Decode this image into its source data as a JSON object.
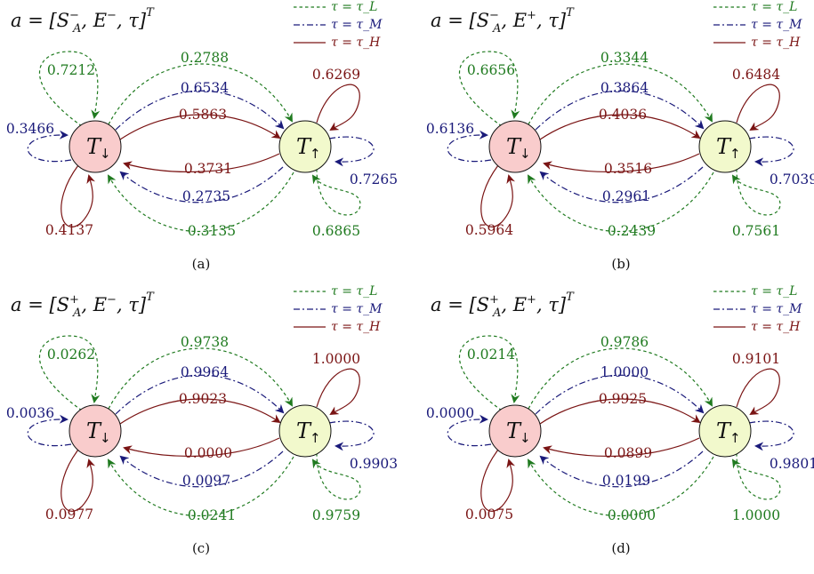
{
  "legend": {
    "low": "τ = τ_L",
    "medium": "τ = τ_M",
    "high": "τ = τ_H"
  },
  "colors": {
    "low": "#1f7a1f",
    "medium": "#1a1a7a",
    "high": "#7a1414",
    "node_down_fill": "#f9cccc",
    "node_up_fill": "#f2f9cc"
  },
  "nodes": {
    "down": {
      "symbol": "T",
      "subscript": "↓"
    },
    "up": {
      "symbol": "T",
      "subscript": "↑"
    }
  },
  "panels": [
    {
      "caption": "(a)",
      "title": {
        "s_sign": "−",
        "e_sign": "−"
      },
      "probabilities": {
        "low": {
          "down_self": "0.7212",
          "down_to_up": "0.2788",
          "up_to_down": "0.3135",
          "up_self": "0.6865"
        },
        "medium": {
          "down_self": "0.3466",
          "down_to_up": "0.6534",
          "up_to_down": "0.2735",
          "up_self": "0.7265"
        },
        "high": {
          "down_self": "0.4137",
          "down_to_up": "0.5863",
          "up_to_down": "0.3731",
          "up_self": "0.6269"
        }
      }
    },
    {
      "caption": "(b)",
      "title": {
        "s_sign": "−",
        "e_sign": "+"
      },
      "probabilities": {
        "low": {
          "down_self": "0.6656",
          "down_to_up": "0.3344",
          "up_to_down": "0.2439",
          "up_self": "0.7561"
        },
        "medium": {
          "down_self": "0.6136",
          "down_to_up": "0.3864",
          "up_to_down": "0.2961",
          "up_self": "0.7039"
        },
        "high": {
          "down_self": "0.5964",
          "down_to_up": "0.4036",
          "up_to_down": "0.3516",
          "up_self": "0.6484"
        }
      }
    },
    {
      "caption": "(c)",
      "title": {
        "s_sign": "+",
        "e_sign": "−"
      },
      "probabilities": {
        "low": {
          "down_self": "0.0262",
          "down_to_up": "0.9738",
          "up_to_down": "0.0241",
          "up_self": "0.9759"
        },
        "medium": {
          "down_self": "0.0036",
          "down_to_up": "0.9964",
          "up_to_down": "0.0097",
          "up_self": "0.9903"
        },
        "high": {
          "down_self": "0.0977",
          "down_to_up": "0.9023",
          "up_to_down": "0.0000",
          "up_self": "1.0000"
        }
      }
    },
    {
      "caption": "(d)",
      "title": {
        "s_sign": "+",
        "e_sign": "+"
      },
      "probabilities": {
        "low": {
          "down_self": "0.0214",
          "down_to_up": "0.9786",
          "up_to_down": "0.0000",
          "up_self": "1.0000"
        },
        "medium": {
          "down_self": "0.0000",
          "down_to_up": "1.0000",
          "up_to_down": "0.0199",
          "up_self": "0.9801"
        },
        "high": {
          "down_self": "0.0075",
          "down_to_up": "0.9925",
          "up_to_down": "0.0899",
          "up_self": "0.9101"
        }
      }
    }
  ]
}
